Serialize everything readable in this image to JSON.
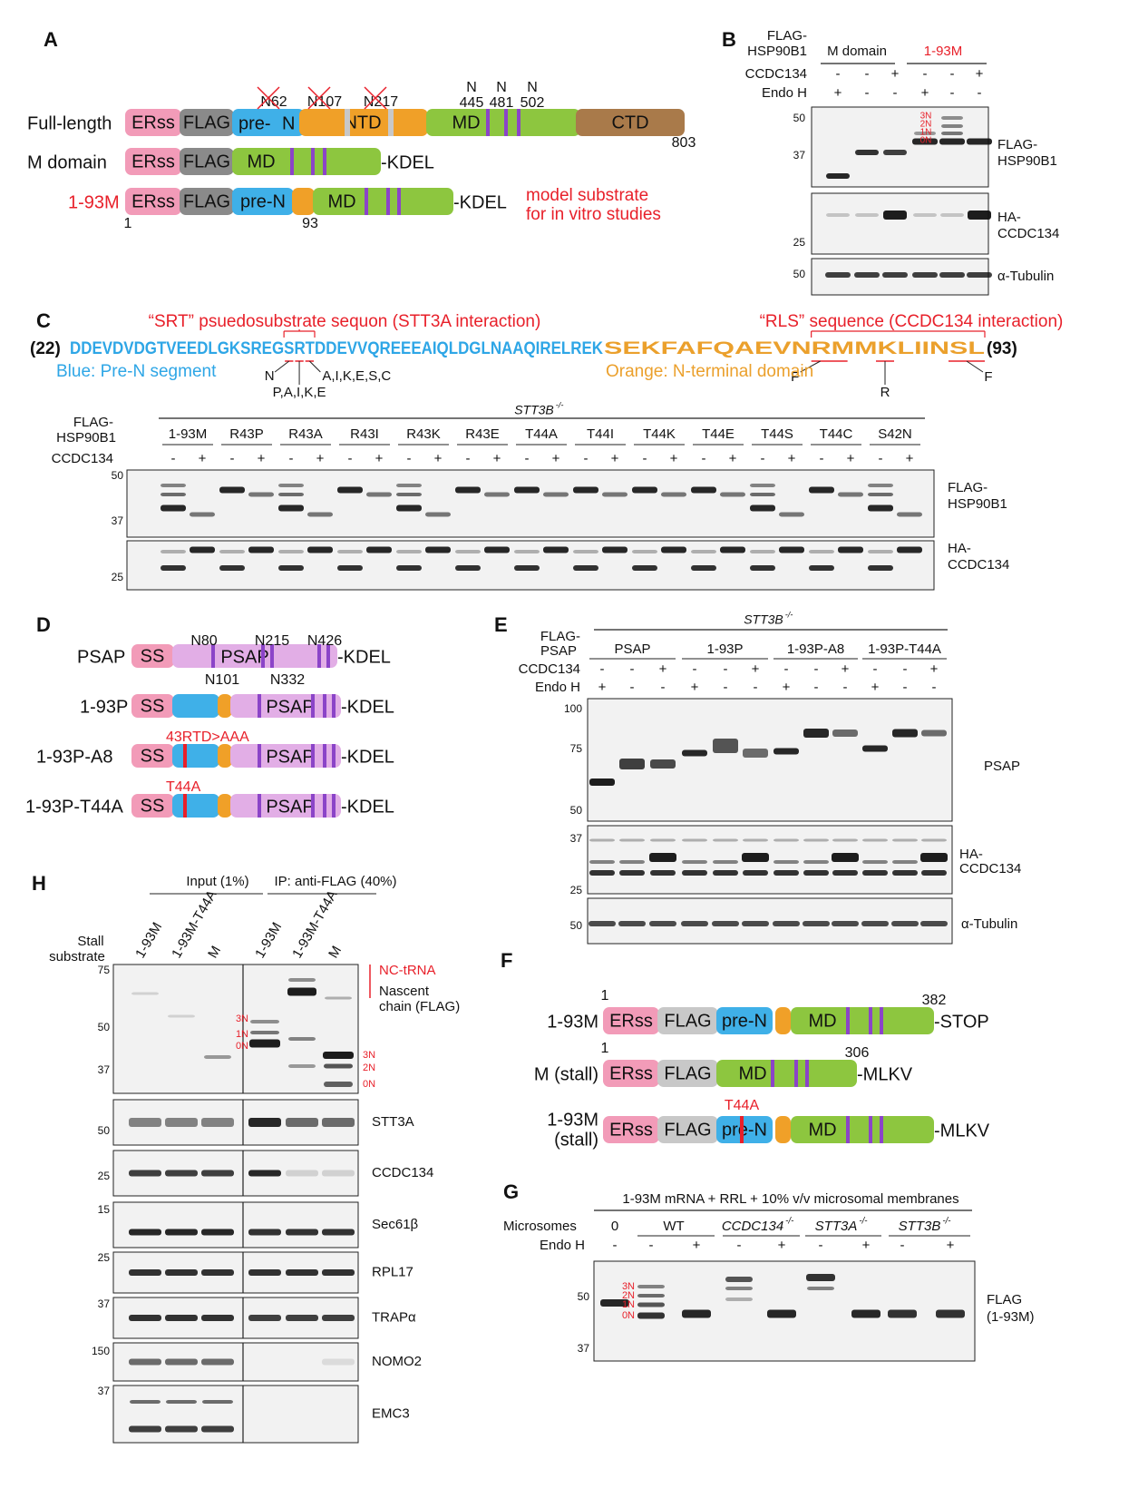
{
  "panel_a": {
    "label": "A",
    "rows": [
      {
        "name": "Full-length",
        "domains": [
          "ERss",
          "FLAG",
          "pre-",
          "N",
          "NTD",
          "MD",
          "CTD"
        ],
        "glycosites": [
          "N62",
          "N107",
          "N217"
        ],
        "sequon_sites": [
          [
            "N",
            "445"
          ],
          [
            "N",
            "481"
          ],
          [
            "N",
            "502"
          ]
        ],
        "end": "803"
      },
      {
        "name": "M domain",
        "domains": [
          "ERss",
          "FLAG",
          "MD"
        ],
        "tail": "-KDEL"
      },
      {
        "name": "1-93M",
        "domains": [
          "ERss",
          "FLAG",
          "pre-N",
          "MD"
        ],
        "tail": "-KDEL",
        "start": "1",
        "boundary": "93",
        "note": [
          "model substrate",
          "for in vitro studies"
        ]
      }
    ]
  },
  "panel_b": {
    "label": "B",
    "construct_label": [
      "FLAG-",
      "HSP90B1"
    ],
    "groups": [
      "M domain",
      "1-93M"
    ],
    "rows": [
      {
        "name": "CCDC134",
        "signs": [
          "-",
          "-",
          "+",
          "-",
          "-",
          "+"
        ]
      },
      {
        "name": "Endo H",
        "signs": [
          "+",
          "-",
          "-",
          "+",
          "-",
          "-"
        ]
      }
    ],
    "blots": [
      {
        "markers": [
          "50",
          "37"
        ],
        "name": [
          "FLAG-",
          "HSP90B1"
        ],
        "glycoforms": [
          "3N",
          "2N",
          "1N",
          "0N"
        ]
      },
      {
        "markers": [
          "25"
        ],
        "name": [
          "HA-",
          "CCDC134"
        ]
      },
      {
        "markers": [
          "50"
        ],
        "name": [
          "α-Tubulin"
        ]
      }
    ]
  },
  "panel_c": {
    "label": "C",
    "srt_note": "“SRT” psuedosubstrate sequon (STT3A interaction)",
    "rls_note": "“RLS” sequence (CCDC134 interaction)",
    "seq_start": "(22)",
    "pre_n_seq": "DDEVDVDGTVEEDLGKSREGSRTDDEVVQREEEAIQLDGLNAAQIRELREK",
    "ntd_seq": "SEKFAFQAEVNRMMKLIINSL",
    "seq_end": "(93)",
    "legend": [
      "Blue: Pre-N segment",
      "Orange: N-terminal domain"
    ],
    "mutations": [
      "N",
      "P,A,I,K,E",
      "A,I,K,E,S,C",
      "F",
      "R",
      "F"
    ],
    "genotype": "STT3B",
    "genotype_sup": "-/-",
    "construct_label": [
      "FLAG-",
      "HSP90B1"
    ],
    "lanes": [
      "1-93M",
      "R43P",
      "R43A",
      "R43I",
      "R43K",
      "R43E",
      "T44A",
      "T44I",
      "T44K",
      "T44E",
      "T44S",
      "T44C",
      "S42N"
    ],
    "ccdc134_row": {
      "name": "CCDC134",
      "signs": [
        "-",
        "+",
        "-",
        "+",
        "-",
        "+",
        "-",
        "+",
        "-",
        "+",
        "-",
        "+",
        "-",
        "+",
        "-",
        "+",
        "-",
        "+",
        "-",
        "+",
        "-",
        "+",
        "-",
        "+",
        "-",
        "+"
      ]
    },
    "blots": [
      {
        "markers": [
          "50",
          "37"
        ],
        "name": [
          "FLAG-",
          "HSP90B1"
        ]
      },
      {
        "markers": [
          "25"
        ],
        "name": [
          "HA-",
          "CCDC134"
        ]
      }
    ]
  },
  "panel_d": {
    "label": "D",
    "constructs": [
      {
        "name": "PSAP",
        "domains": [
          "SS",
          "PSAP"
        ],
        "tail": "-KDEL",
        "sites": [
          "N80",
          "N215",
          "N426",
          "N101",
          "N332"
        ]
      },
      {
        "name": "1-93P",
        "domains": [
          "SS",
          "PSAP"
        ],
        "tail": "-KDEL"
      },
      {
        "name": "1-93P-A8",
        "domains": [
          "SS",
          "PSAP"
        ],
        "tail": "-KDEL",
        "mutation": "43RTD>AAA"
      },
      {
        "name": "1-93P-T44A",
        "domains": [
          "SS",
          "PSAP"
        ],
        "tail": "-KDEL",
        "mutation": "T44A"
      }
    ]
  },
  "panel_e": {
    "label": "E",
    "genotype": "STT3B",
    "genotype_sup": "-/-",
    "construct_label": [
      "FLAG-",
      "PSAP"
    ],
    "groups": [
      "PSAP",
      "1-93P",
      "1-93P-A8",
      "1-93P-T44A"
    ],
    "rows": [
      {
        "name": "CCDC134",
        "signs": [
          "-",
          "-",
          "+",
          "-",
          "-",
          "+",
          "-",
          "-",
          "+",
          "-",
          "-",
          "+"
        ]
      },
      {
        "name": "Endo H",
        "signs": [
          "+",
          "-",
          "-",
          "+",
          "-",
          "-",
          "+",
          "-",
          "-",
          "+",
          "-",
          "-"
        ]
      }
    ],
    "blots": [
      {
        "markers": [
          "100",
          "75",
          "50"
        ],
        "name": [
          "PSAP"
        ]
      },
      {
        "markers": [
          "37",
          "25"
        ],
        "name": [
          "HA-",
          "CCDC134"
        ]
      },
      {
        "markers": [
          "50"
        ],
        "name": [
          "α-Tubulin"
        ]
      }
    ]
  },
  "panel_f": {
    "label": "F",
    "constructs": [
      {
        "name": [
          "1-93M"
        ],
        "domains": [
          "ERss",
          "FLAG",
          "pre-N",
          "MD"
        ],
        "tail": "-STOP",
        "start": "1",
        "end": "382"
      },
      {
        "name": [
          "M (stall)"
        ],
        "domains": [
          "ERss",
          "FLAG",
          "MD"
        ],
        "tail": "-MLKV",
        "start": "1",
        "end": "306"
      },
      {
        "name": [
          "1-93M",
          "(stall)"
        ],
        "domains": [
          "ERss",
          "FLAG",
          "pre-N",
          "MD"
        ],
        "tail": "-MLKV",
        "mutation": "T44A"
      }
    ]
  },
  "panel_g": {
    "label": "G",
    "title": "1-93M mRNA + RRL + 10% v/v microsomal membranes",
    "row_label": "Microsomes",
    "groups": [
      {
        "name": "0"
      },
      {
        "name": "WT"
      },
      {
        "name": "CCDC134",
        "sup": "-/-"
      },
      {
        "name": "STT3A",
        "sup": "-/-"
      },
      {
        "name": "STT3B",
        "sup": "-/-"
      }
    ],
    "endo_h": {
      "name": "Endo H",
      "signs": [
        "-",
        "-",
        "+",
        "-",
        "+",
        "-",
        "+",
        "-",
        "+"
      ]
    },
    "markers": [
      "50",
      "37"
    ],
    "blot_name": [
      "FLAG",
      "(1-93M)"
    ],
    "glycoforms": [
      "3N",
      "2N",
      "1N",
      "0N"
    ]
  },
  "panel_h": {
    "label": "H",
    "groups": [
      "Input (1%)",
      "IP: anti-FLAG (40%)"
    ],
    "row_label": [
      "Stall",
      "substrate"
    ],
    "lanes": [
      "1-93M",
      "1-93M-T44A",
      "M",
      "1-93M",
      "1-93M-T44A",
      "M"
    ],
    "main_blot": {
      "markers": [
        "75",
        "50",
        "37"
      ],
      "nc_trna": "NC-tRNA",
      "name": [
        "Nascent",
        "chain (FLAG)"
      ],
      "glyco_input": [
        "3N",
        "1N",
        "0N"
      ],
      "glyco_m": [
        "3N",
        "2N",
        "0N"
      ]
    },
    "blots": [
      {
        "name": "STT3A",
        "markers": [
          "50"
        ]
      },
      {
        "name": "CCDC134",
        "markers": [
          "25"
        ]
      },
      {
        "name": "Sec61β",
        "markers": [
          "15"
        ]
      },
      {
        "name": "RPL17",
        "markers": [
          "25"
        ]
      },
      {
        "name": "TRAPα",
        "markers": [
          "37"
        ]
      },
      {
        "name": "NOMO2",
        "markers": [
          "150"
        ]
      },
      {
        "name": "EMC3",
        "markers": [
          "37"
        ]
      }
    ]
  }
}
